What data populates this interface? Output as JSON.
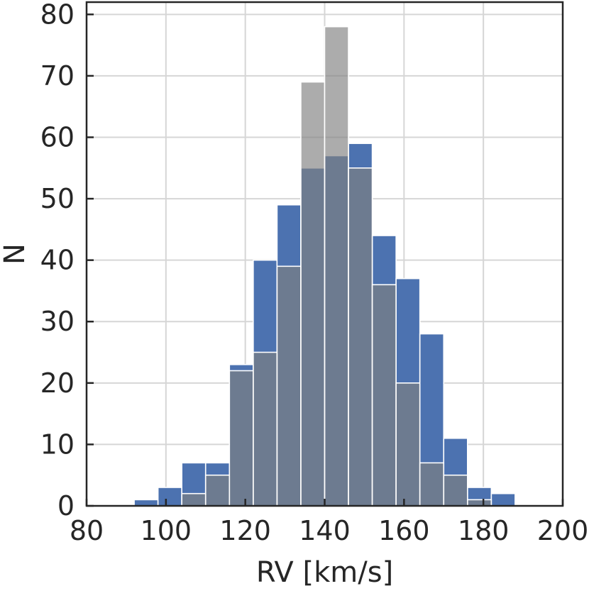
{
  "chart_data": {
    "type": "bar",
    "title": "",
    "xlabel": "RV [km/s]",
    "ylabel": "N",
    "xlim": [
      80,
      200
    ],
    "ylim": [
      0,
      82
    ],
    "xticks": [
      80,
      100,
      120,
      140,
      160,
      180,
      200
    ],
    "yticks": [
      0,
      10,
      20,
      30,
      40,
      50,
      60,
      70,
      80
    ],
    "grid": true,
    "bin_width": 6,
    "series": [
      {
        "color": "#4c72b0",
        "bins": [
          {
            "x0": 92,
            "x1": 98,
            "value": 1
          },
          {
            "x0": 98,
            "x1": 104,
            "value": 3
          },
          {
            "x0": 104,
            "x1": 110,
            "value": 7
          },
          {
            "x0": 110,
            "x1": 116,
            "value": 7
          },
          {
            "x0": 116,
            "x1": 122,
            "value": 23
          },
          {
            "x0": 122,
            "x1": 128,
            "value": 40
          },
          {
            "x0": 128,
            "x1": 134,
            "value": 49
          },
          {
            "x0": 134,
            "x1": 140,
            "value": 55
          },
          {
            "x0": 140,
            "x1": 146,
            "value": 57
          },
          {
            "x0": 146,
            "x1": 152,
            "value": 59
          },
          {
            "x0": 152,
            "x1": 158,
            "value": 44
          },
          {
            "x0": 158,
            "x1": 164,
            "value": 37
          },
          {
            "x0": 164,
            "x1": 170,
            "value": 28
          },
          {
            "x0": 170,
            "x1": 176,
            "value": 11
          },
          {
            "x0": 176,
            "x1": 182,
            "value": 3
          },
          {
            "x0": 182,
            "x1": 188,
            "value": 2
          }
        ]
      },
      {
        "color": "#808080",
        "opacity": 0.65,
        "bins": [
          {
            "x0": 92,
            "x1": 98,
            "value": 0
          },
          {
            "x0": 98,
            "x1": 104,
            "value": 0
          },
          {
            "x0": 104,
            "x1": 110,
            "value": 2
          },
          {
            "x0": 110,
            "x1": 116,
            "value": 5
          },
          {
            "x0": 116,
            "x1": 122,
            "value": 22
          },
          {
            "x0": 122,
            "x1": 128,
            "value": 25
          },
          {
            "x0": 128,
            "x1": 134,
            "value": 39
          },
          {
            "x0": 134,
            "x1": 140,
            "value": 69
          },
          {
            "x0": 140,
            "x1": 146,
            "value": 78
          },
          {
            "x0": 146,
            "x1": 152,
            "value": 55
          },
          {
            "x0": 152,
            "x1": 158,
            "value": 36
          },
          {
            "x0": 158,
            "x1": 164,
            "value": 20
          },
          {
            "x0": 164,
            "x1": 170,
            "value": 7
          },
          {
            "x0": 170,
            "x1": 176,
            "value": 5
          },
          {
            "x0": 176,
            "x1": 182,
            "value": 1
          },
          {
            "x0": 182,
            "x1": 188,
            "value": 0
          }
        ]
      }
    ]
  }
}
